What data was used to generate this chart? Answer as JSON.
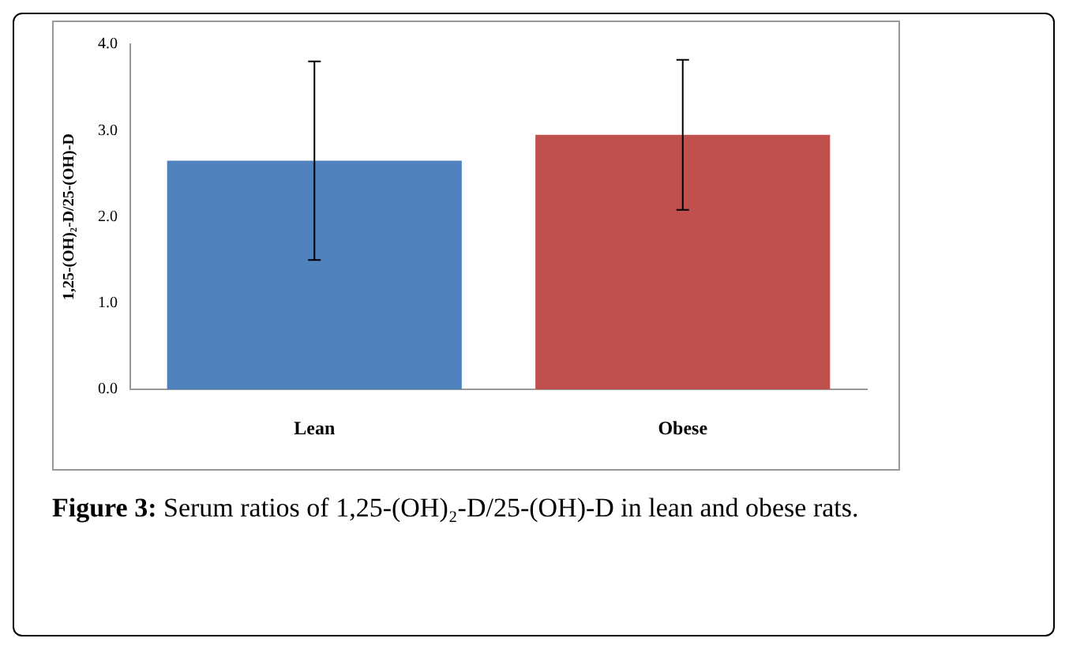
{
  "chart_data": {
    "type": "bar",
    "categories": [
      "Lean",
      "Obese"
    ],
    "values": [
      2.65,
      2.95
    ],
    "colors": [
      "#4f81bd",
      "#c0504d"
    ],
    "errors": [
      1.15,
      0.87
    ],
    "ylabel": "1,25-(OH)₂-D/25-(OH)-D",
    "ylim": [
      0,
      4
    ],
    "yticks": [
      {
        "value": 0,
        "label": "0.0"
      },
      {
        "value": 1,
        "label": "1.0"
      },
      {
        "value": 2,
        "label": "2.0"
      },
      {
        "value": 3,
        "label": "3.0"
      },
      {
        "value": 4,
        "label": "4.0"
      }
    ],
    "grid": false,
    "legend": false,
    "annotations": [
      "Figure 3: Serum ratios of 1,25-(OH)₂-D/25-(OH)-D in lean and obese rats."
    ]
  }
}
